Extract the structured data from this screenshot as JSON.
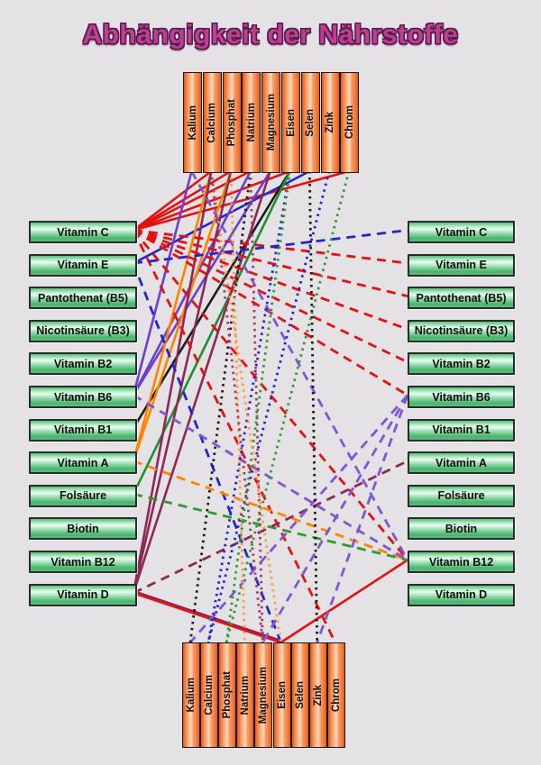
{
  "title": "Abhängigkeit der Nährstoffe",
  "minerals": [
    "Kalium",
    "Calcium",
    "Phosphat",
    "Natrium",
    "Magnesium",
    "Eisen",
    "Selen",
    "Zink",
    "Chrom"
  ],
  "vitamins": [
    "Vitamin C",
    "Vitamin E",
    "Pantothenat (B5)",
    "Nicotinsäure (B3)",
    "Vitamin B2",
    "Vitamin B6",
    "Vitamin B1",
    "Vitamin A",
    "Folsäure",
    "Biotin",
    "Vitamin B12",
    "Vitamin D"
  ],
  "palette": {
    "background": "#e4e2e4",
    "title_fill": "#bc3f90",
    "title_outline": "#571a4e",
    "bar_orange": "#ef7434",
    "box_green": "#55c078",
    "red": "#e31212",
    "blue": "#2525cf",
    "purple": "#6b3fd1",
    "violet": "#7e57d6",
    "orange": "#ff8400",
    "orange_light": "#ff9d3d",
    "green": "#1f8f2f",
    "green_bright": "#2f9b2f",
    "maroon": "#8c2857",
    "maroon_light": "#a04066",
    "black": "#1c1c1c"
  },
  "connections": [
    {
      "a": "left:Vitamin C",
      "b": "top:Calcium",
      "color": "red",
      "style": "solid"
    },
    {
      "a": "left:Vitamin C",
      "b": "top:Phosphat",
      "color": "red",
      "style": "solid"
    },
    {
      "a": "left:Vitamin C",
      "b": "top:Natrium",
      "color": "red",
      "style": "solid"
    },
    {
      "a": "left:Vitamin C",
      "b": "top:Eisen",
      "color": "red",
      "style": "solid"
    },
    {
      "a": "left:Vitamin C",
      "b": "top:Chrom",
      "color": "red",
      "style": "solid"
    },
    {
      "a": "left:Vitamin E",
      "b": "top:Selen",
      "color": "blue",
      "style": "solid"
    },
    {
      "a": "left:Vitamin B6",
      "b": "top:Kalium",
      "color": "purple",
      "style": "solid"
    },
    {
      "a": "left:Vitamin B6",
      "b": "top:Natrium",
      "color": "purple",
      "style": "solid"
    },
    {
      "a": "left:Vitamin B6",
      "b": "top:Magnesium",
      "color": "purple",
      "style": "solid"
    },
    {
      "a": "left:Vitamin B1",
      "b": "top:Eisen",
      "color": "black",
      "style": "solid"
    },
    {
      "a": "left:Vitamin A",
      "b": "top:Calcium",
      "color": "orange",
      "style": "solid"
    },
    {
      "a": "left:Vitamin A",
      "b": "top:Phosphat",
      "color": "orange",
      "style": "solid"
    },
    {
      "a": "left:Folsäure",
      "b": "top:Eisen",
      "color": "green",
      "style": "solid"
    },
    {
      "a": "left:Vitamin D",
      "b": "top:Calcium",
      "color": "maroon",
      "style": "solid"
    },
    {
      "a": "left:Vitamin D",
      "b": "top:Phosphat",
      "color": "maroon",
      "style": "solid"
    },
    {
      "a": "left:Vitamin D",
      "b": "top:Magnesium",
      "color": "maroon",
      "style": "solid"
    },
    {
      "a": "left:Vitamin D",
      "b": "bottom:Eisen",
      "color": "maroon",
      "style": "solid",
      "off": [
        0,
        -2
      ]
    },
    {
      "a": "left:Vitamin D",
      "b": "bottom:Eisen",
      "color": "red",
      "style": "solid"
    },
    {
      "a": "bottom:Eisen",
      "b": "right:Vitamin B12",
      "color": "red",
      "style": "solid"
    },
    {
      "a": "left:Vitamin C",
      "b": "right:Vitamin E",
      "color": "red",
      "style": "dashed"
    },
    {
      "a": "left:Vitamin C",
      "b": "right:Pantothenat (B5)",
      "color": "red",
      "style": "dashed"
    },
    {
      "a": "left:Vitamin C",
      "b": "right:Nicotinsäure (B3)",
      "color": "red",
      "style": "dashed"
    },
    {
      "a": "left:Vitamin C",
      "b": "right:Vitamin B2",
      "color": "red",
      "style": "dashed"
    },
    {
      "a": "left:Vitamin C",
      "b": "right:Vitamin B6",
      "color": "red",
      "style": "dashed"
    },
    {
      "a": "left:Vitamin C",
      "b": "right:Vitamin B12",
      "color": "red",
      "style": "dashed"
    },
    {
      "a": "left:Vitamin C",
      "b": "bottom:Chrom",
      "color": "red",
      "style": "dashed"
    },
    {
      "a": "left:Vitamin E",
      "b": "right:Vitamin C",
      "color": "blue",
      "style": "dashed"
    },
    {
      "a": "left:Vitamin E",
      "b": "bottom:Eisen",
      "color": "blue",
      "style": "dashed"
    },
    {
      "a": "left:Vitamin A",
      "b": "right:Vitamin B12",
      "color": "orange",
      "style": "dashed"
    },
    {
      "a": "left:Folsäure",
      "b": "right:Vitamin B12",
      "color": "green_bright",
      "style": "dashed"
    },
    {
      "a": "left:Vitamin D",
      "b": "right:Vitamin A",
      "color": "maroon",
      "style": "dashed"
    },
    {
      "a": "left:Vitamin B6",
      "b": "right:Vitamin B12",
      "color": "violet",
      "style": "dashed"
    },
    {
      "a": "top:Kalium",
      "b": "right:Vitamin B12",
      "color": "violet",
      "style": "dashed"
    },
    {
      "a": "right:Vitamin B6",
      "b": "bottom:Kalium",
      "color": "violet",
      "style": "dashed"
    },
    {
      "a": "right:Vitamin B6",
      "b": "bottom:Magnesium",
      "color": "violet",
      "style": "dashed"
    },
    {
      "a": "right:Vitamin B6",
      "b": "bottom:Zink",
      "color": "violet",
      "style": "dashed"
    },
    {
      "a": "top:Natrium",
      "b": "bottom:Kalium",
      "color": "black",
      "style": "dotted"
    },
    {
      "a": "top:Selen",
      "b": "bottom:Zink",
      "color": "black",
      "style": "dotted"
    },
    {
      "a": "top:Eisen",
      "b": "bottom:Calcium",
      "color": "blue",
      "style": "dotted"
    },
    {
      "a": "top:Zink",
      "b": "bottom:Calcium",
      "color": "blue",
      "style": "dotted"
    },
    {
      "a": "top:Eisen",
      "b": "bottom:Phosphat",
      "color": "green_bright",
      "style": "dotted"
    },
    {
      "a": "top:Chrom",
      "b": "bottom:Phosphat",
      "color": "green_bright",
      "style": "dotted"
    },
    {
      "a": "top:Phosphat",
      "b": "bottom:Natrium",
      "color": "orange_light",
      "style": "dotted"
    },
    {
      "a": "top:Calcium",
      "b": "bottom:Eisen",
      "color": "orange_light",
      "style": "dotted"
    },
    {
      "a": "top:Calcium",
      "b": "bottom:Magnesium",
      "color": "maroon_light",
      "style": "dotted"
    },
    {
      "a": "top:Natrium",
      "b": "bottom:Magnesium",
      "color": "maroon_light",
      "style": "dotted"
    }
  ]
}
